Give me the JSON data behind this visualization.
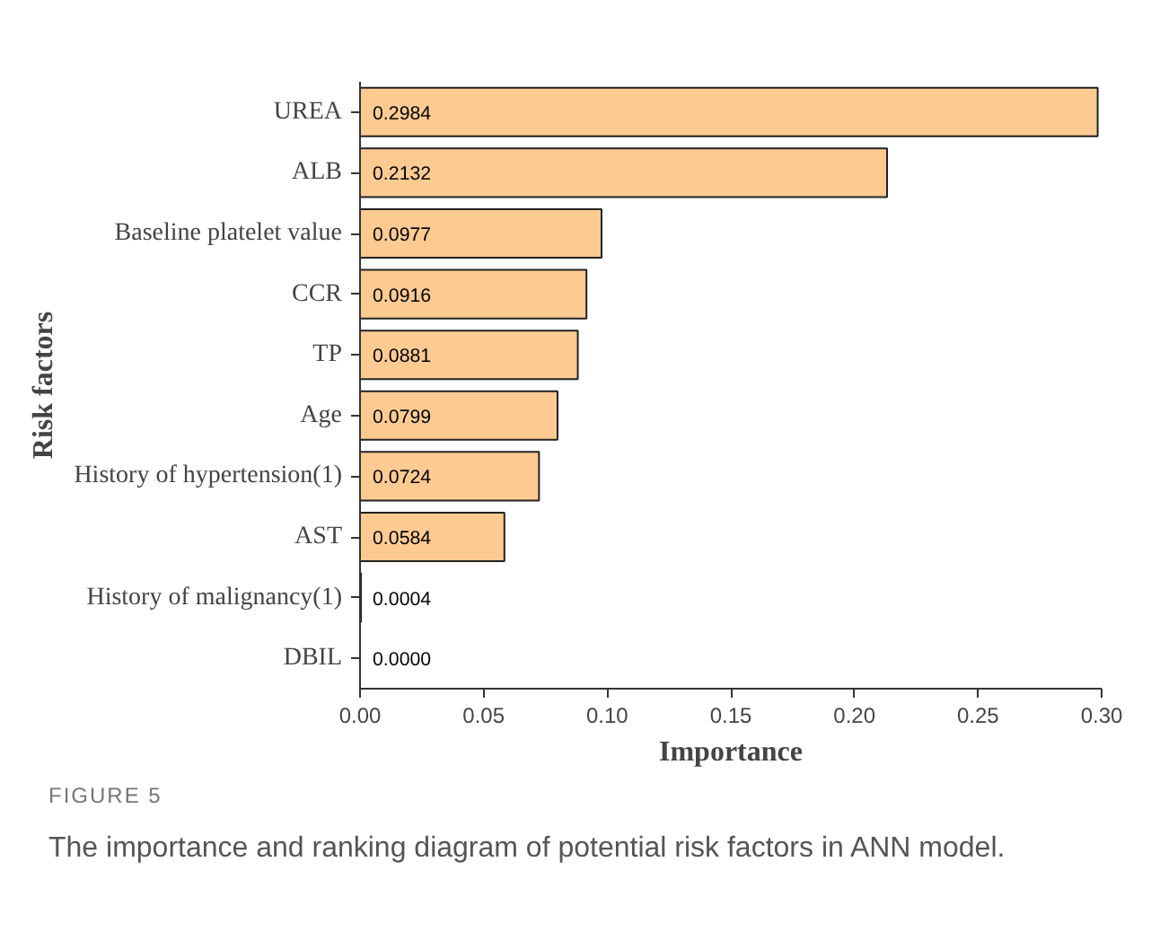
{
  "chart_data": {
    "type": "bar",
    "orientation": "horizontal",
    "categories": [
      "UREA",
      "ALB",
      "Baseline platelet value",
      "CCR",
      "TP",
      "Age",
      "History of hypertension(1)",
      "AST",
      "History of malignancy(1)",
      "DBIL"
    ],
    "values": [
      0.2984,
      0.2132,
      0.0977,
      0.0916,
      0.0881,
      0.0799,
      0.0724,
      0.0584,
      0.0004,
      0.0
    ],
    "value_labels": [
      "0.2984",
      "0.2132",
      "0.0977",
      "0.0916",
      "0.0881",
      "0.0799",
      "0.0724",
      "0.0584",
      "0.0004",
      "0.0000"
    ],
    "color": "#fdcb92",
    "xlim": [
      0,
      0.3
    ],
    "xticks": [
      {
        "value": 0,
        "label": "0.00"
      },
      {
        "value": 0.05,
        "label": "0.05"
      },
      {
        "value": 0.1,
        "label": "0.10"
      },
      {
        "value": 0.15,
        "label": "0.15"
      },
      {
        "value": 0.2,
        "label": "0.20"
      },
      {
        "value": 0.25,
        "label": "0.25"
      },
      {
        "value": 0.3,
        "label": "0.30"
      }
    ],
    "xlabel": "Importance",
    "ylabel": "Risk factors",
    "grid": false,
    "annotations": [
      "FIGURE 5",
      "The importance and ranking diagram of potential risk factors in ANN model."
    ]
  }
}
